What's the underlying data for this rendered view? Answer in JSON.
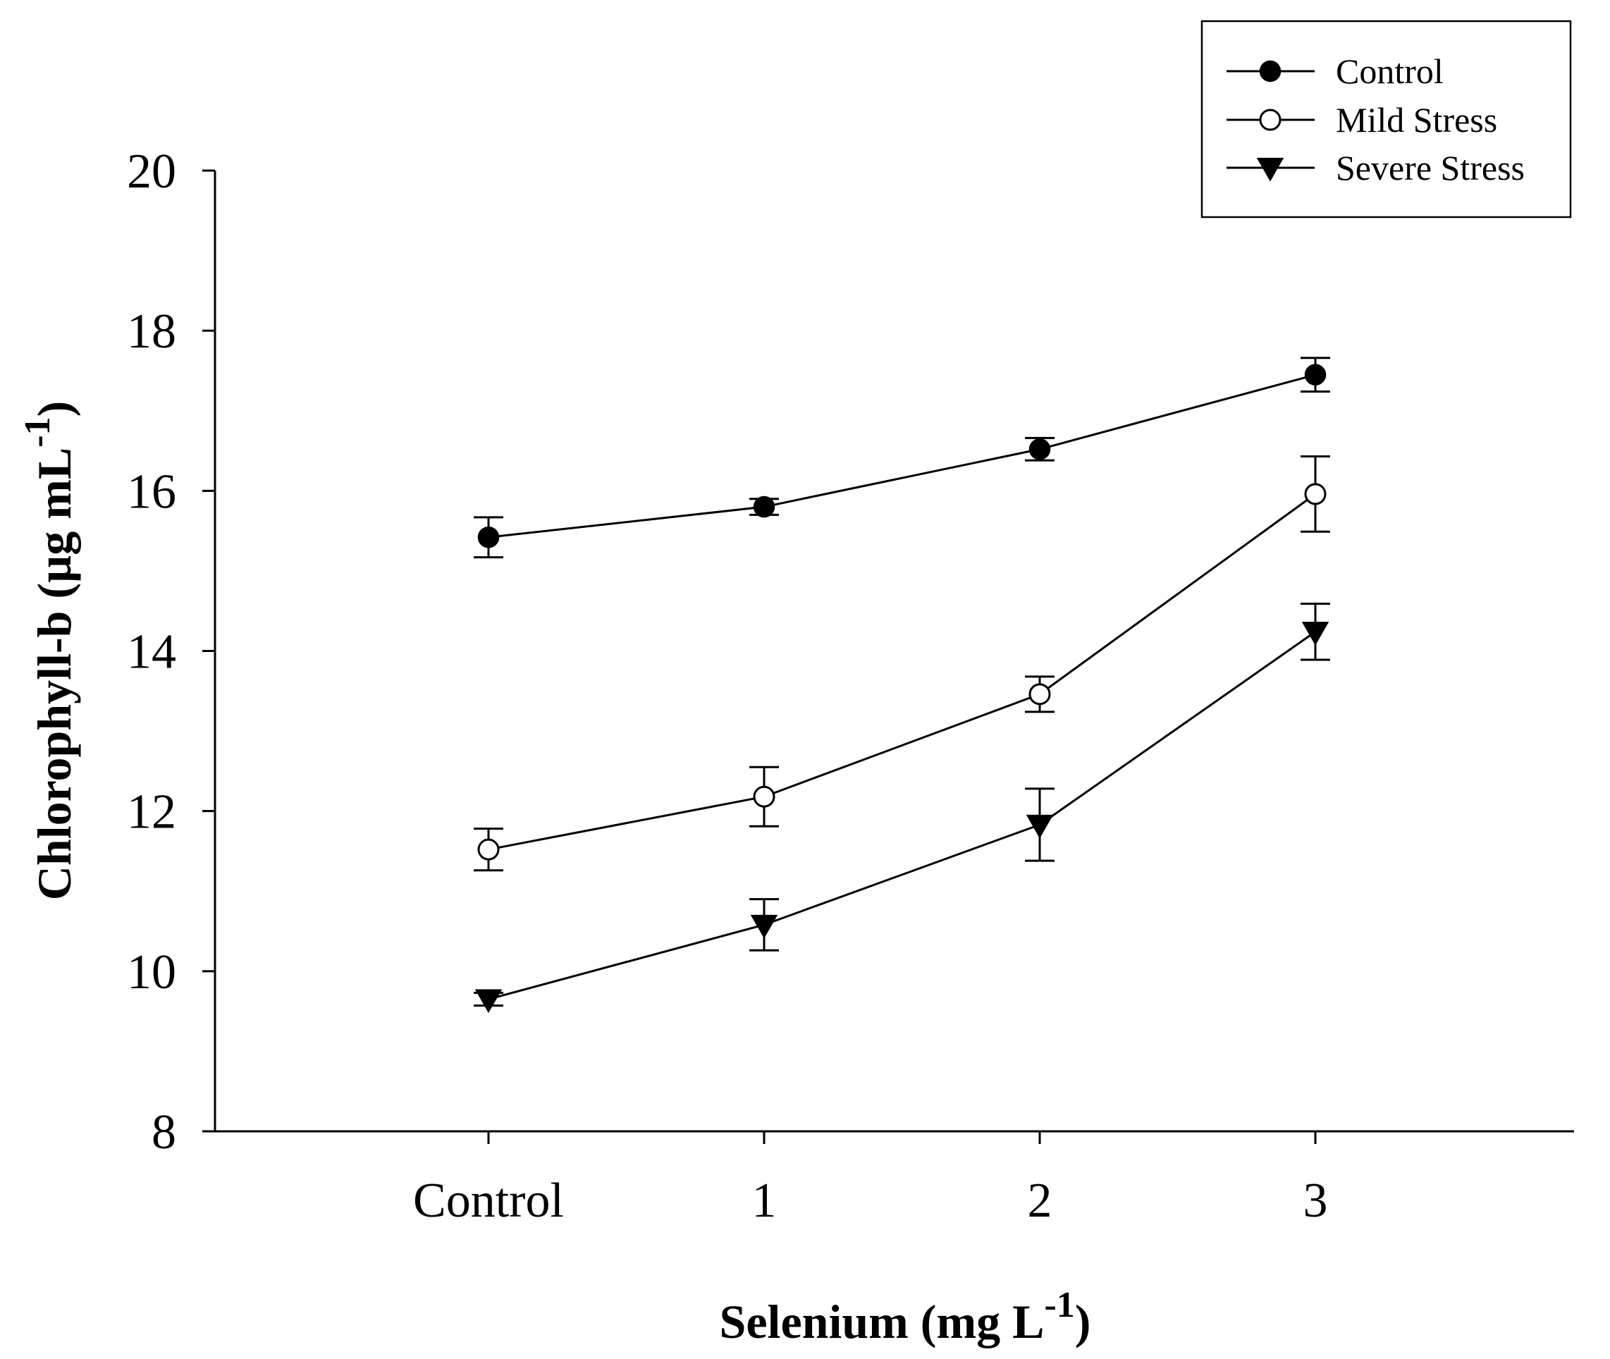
{
  "chart_data": {
    "type": "line",
    "title": "",
    "xlabel": {
      "text": "Selenium (mg L",
      "superscript": "-1",
      "suffix": ")"
    },
    "ylabel": {
      "text": "Chlorophyll-b (µg mL",
      "superscript": "-1",
      "suffix": ")"
    },
    "categories": [
      "Control",
      "1",
      "2",
      "3"
    ],
    "ylim": [
      8,
      20
    ],
    "yticks": [
      "8",
      "10",
      "12",
      "14",
      "16",
      "18",
      "20"
    ],
    "grid": false,
    "legend_position": "top-right",
    "series": [
      {
        "name": "Control",
        "marker": "filled-circle",
        "values": [
          15.42,
          15.8,
          16.52,
          17.45
        ],
        "errors": [
          0.25,
          0.1,
          0.14,
          0.21
        ]
      },
      {
        "name": "Mild Stress",
        "marker": "open-circle",
        "values": [
          11.52,
          12.18,
          13.46,
          15.96
        ],
        "errors": [
          0.26,
          0.37,
          0.22,
          0.47
        ]
      },
      {
        "name": "Severe Stress",
        "marker": "filled-triangle-down",
        "values": [
          9.65,
          10.58,
          11.83,
          14.24
        ],
        "errors": [
          0.08,
          0.32,
          0.45,
          0.35
        ]
      }
    ],
    "colors": {
      "line": "#000000",
      "marker_fill": "#000000",
      "open_marker_fill": "#ffffff"
    }
  }
}
